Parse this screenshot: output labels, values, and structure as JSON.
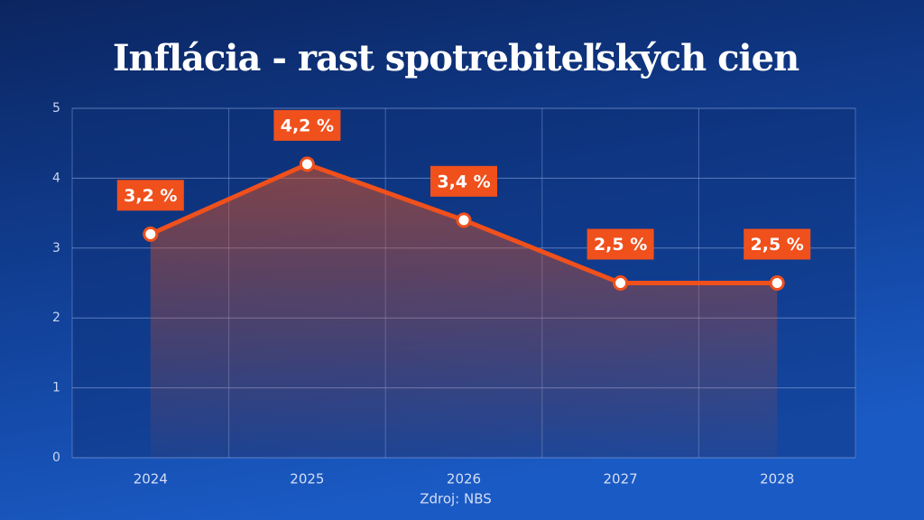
{
  "chart_data": {
    "type": "line",
    "title": "Inflácia - rast spotrebiteľských cien",
    "source": "Zdroj: NBS",
    "categories": [
      "2024",
      "2025",
      "2026",
      "2027",
      "2028"
    ],
    "values": [
      3.2,
      4.2,
      3.4,
      2.5,
      2.5
    ],
    "value_labels": [
      "3,2 %",
      "4,2 %",
      "3,4 %",
      "2,5 %",
      "2,5 %"
    ],
    "color": "#f0501c",
    "ylim": [
      0,
      5
    ],
    "yticks": [
      0,
      1,
      2,
      3,
      4,
      5
    ],
    "grid": true
  }
}
